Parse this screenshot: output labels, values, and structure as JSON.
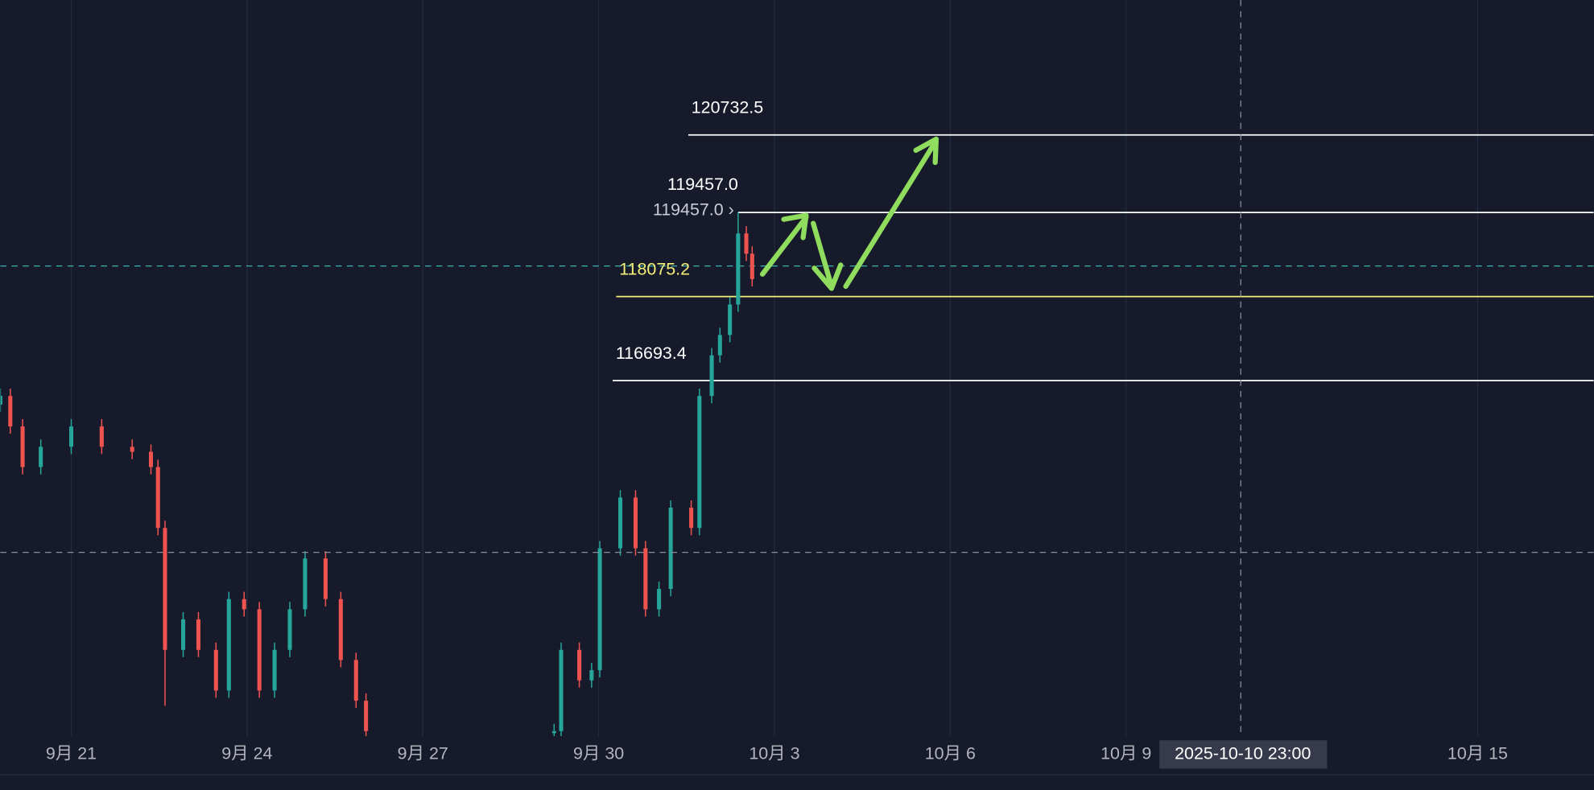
{
  "chart_data": {
    "type": "candlestick",
    "x": [
      19.79,
      19.96,
      20.17,
      20.48,
      21.0,
      21.52,
      22.04,
      22.36,
      22.48,
      22.6,
      22.91,
      23.17,
      23.47,
      23.69,
      23.95,
      24.21,
      24.47,
      24.73,
      24.99,
      25.34,
      25.6,
      25.86,
      26.03,
      29.24,
      29.36,
      29.67,
      29.88,
      30.02,
      30.37,
      30.63,
      30.8,
      31.03,
      31.23,
      31.58,
      31.72,
      31.93,
      32.07,
      32.24,
      32.38,
      32.52,
      32.62
    ],
    "open": [
      116300,
      116442,
      115941,
      115274,
      115607,
      115941,
      115607,
      115524,
      115274,
      114272,
      112269,
      112769,
      112269,
      111601,
      113103,
      112936,
      111601,
      112269,
      112936,
      113771,
      113103,
      112102,
      111434,
      110900,
      110933,
      112269,
      111768,
      111935,
      113938,
      114773,
      113938,
      112936,
      113270,
      114606,
      114272,
      116442,
      117110,
      117444,
      117945,
      119113,
      118780
    ],
    "high": [
      116562,
      116562,
      116061,
      115727,
      116061,
      116061,
      115727,
      115644,
      115394,
      114392,
      112889,
      112889,
      112389,
      113223,
      113223,
      113056,
      112389,
      113056,
      113891,
      113891,
      113223,
      112222,
      111554,
      111053,
      112389,
      112389,
      112055,
      114058,
      114893,
      114893,
      114058,
      113390,
      114726,
      114726,
      116562,
      117230,
      117564,
      118065,
      119457,
      119233,
      118900
    ],
    "low": [
      116180,
      115821,
      115154,
      115154,
      115487,
      115487,
      115404,
      115154,
      114152,
      111350,
      112149,
      112149,
      111481,
      111481,
      112816,
      111481,
      111481,
      112149,
      112816,
      112983,
      111982,
      111314,
      110813,
      110780,
      110813,
      111648,
      111648,
      111815,
      113818,
      113818,
      112816,
      112816,
      113150,
      114152,
      114152,
      116322,
      116990,
      117324,
      117825,
      118660,
      118242
    ],
    "close": [
      116442,
      115941,
      115274,
      115607,
      115941,
      115607,
      115524,
      115274,
      114272,
      112269,
      112769,
      112269,
      111601,
      113103,
      112936,
      111601,
      112269,
      112936,
      113771,
      113103,
      112102,
      111434,
      110933,
      110933,
      112269,
      111768,
      111935,
      113938,
      114773,
      113938,
      112936,
      113270,
      114606,
      114272,
      116442,
      117110,
      117444,
      117945,
      119113,
      118780,
      118362
    ],
    "up_color": "#26a69a",
    "down_color": "#ef5350",
    "xlim": [
      19.79,
      46.98
    ],
    "ylim": [
      110850,
      122950
    ],
    "xticks": [
      {
        "value": 21,
        "label": "9月 21"
      },
      {
        "value": 24,
        "label": "9月 24"
      },
      {
        "value": 27,
        "label": "9月 27"
      },
      {
        "value": 30,
        "label": "9月 30"
      },
      {
        "value": 33,
        "label": "10月 3"
      },
      {
        "value": 36,
        "label": "10月 6"
      },
      {
        "value": 39,
        "label": "10月 9"
      },
      {
        "value": 45,
        "label": "10月 15"
      }
    ],
    "grid": true,
    "levels": [
      {
        "value": 120732.5,
        "label": "120732.5",
        "from": 31.53,
        "color": "#ffffff",
        "label_side": "above"
      },
      {
        "value": 119457.0,
        "label": "119457.0 ›",
        "from": 32.38,
        "color": "#ffffff",
        "label_side": "left"
      },
      {
        "value": 118075.2,
        "label": "118075.2",
        "from": 30.3,
        "color": "#f5f07a",
        "label_side": "above"
      },
      {
        "value": 116693.4,
        "label": "116693.4",
        "from": 30.24,
        "color": "#ffffff",
        "label_side": "above"
      }
    ],
    "high_label": {
      "value": 119457.0,
      "label": "119457.0"
    },
    "price_line": {
      "value": 118579,
      "color": "#3bb3b3"
    },
    "crosshair": {
      "x": 40.958,
      "y": 113871,
      "label": "2025-10-10 23:00"
    }
  }
}
